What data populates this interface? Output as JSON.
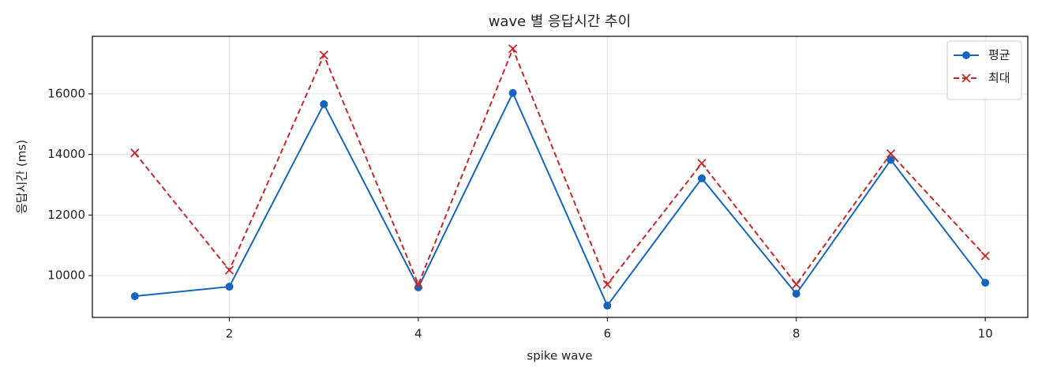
{
  "chart_data": {
    "type": "line",
    "title": "wave 별 응답시간 추이",
    "xlabel": "spike wave",
    "ylabel": "응답시간 (ms)",
    "x": [
      1,
      2,
      3,
      4,
      5,
      6,
      7,
      8,
      9,
      10
    ],
    "series": [
      {
        "name": "평균",
        "color": "#1565c0",
        "marker": "o",
        "linestyle": "solid",
        "values": [
          9320,
          9635,
          15660,
          9610,
          16030,
          9010,
          13210,
          9400,
          13820,
          9765
        ]
      },
      {
        "name": "최대",
        "color": "#c62828",
        "marker": "x",
        "linestyle": "dashed",
        "values": [
          14050,
          10180,
          17280,
          9710,
          17490,
          9710,
          13710,
          9710,
          14025,
          10650
        ]
      }
    ],
    "xlim": [
      0.55,
      10.45
    ],
    "ylim": [
      8620,
      17900
    ],
    "xticks": [
      2,
      4,
      6,
      8,
      10
    ],
    "yticks": [
      10000,
      12000,
      14000,
      16000
    ],
    "grid": true,
    "legend": "upper right"
  }
}
